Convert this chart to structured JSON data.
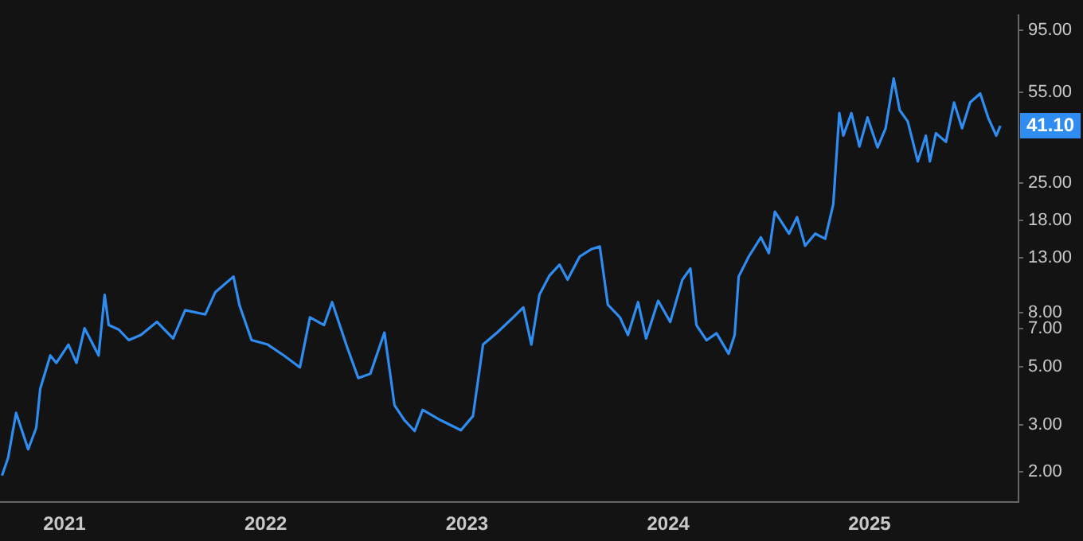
{
  "chart_data": {
    "type": "line",
    "log": "y",
    "color": "#2f8cf0",
    "x": [
      2020.69,
      2020.72,
      2020.76,
      2020.82,
      2020.86,
      2020.88,
      2020.93,
      2020.96,
      2021.02,
      2021.06,
      2021.1,
      2021.17,
      2021.2,
      2021.22,
      2021.27,
      2021.32,
      2021.38,
      2021.46,
      2021.54,
      2021.6,
      2021.7,
      2021.75,
      2021.84,
      2021.87,
      2021.93,
      2022.01,
      2022.09,
      2022.17,
      2022.22,
      2022.29,
      2022.33,
      2022.4,
      2022.46,
      2022.52,
      2022.59,
      2022.64,
      2022.69,
      2022.74,
      2022.78,
      2022.87,
      2022.97,
      2023.03,
      2023.08,
      2023.15,
      2023.23,
      2023.28,
      2023.32,
      2023.36,
      2023.41,
      2023.46,
      2023.5,
      2023.56,
      2023.62,
      2023.66,
      2023.7,
      2023.76,
      2023.8,
      2023.85,
      2023.89,
      2023.95,
      2024.01,
      2024.07,
      2024.11,
      2024.14,
      2024.19,
      2024.24,
      2024.3,
      2024.33,
      2024.35,
      2024.4,
      2024.46,
      2024.5,
      2024.53,
      2024.6,
      2024.64,
      2024.68,
      2024.73,
      2024.78,
      2024.82,
      2024.85,
      2024.87,
      2024.91,
      2024.95,
      2024.99,
      2025.04,
      2025.08,
      2025.12,
      2025.15,
      2025.19,
      2025.24,
      2025.28,
      2025.3,
      2025.33,
      2025.38,
      2025.42,
      2025.46,
      2025.5,
      2025.55,
      2025.59,
      2025.63,
      2025.65
    ],
    "values": [
      1.93,
      2.25,
      3.34,
      2.43,
      2.93,
      4.13,
      5.52,
      5.17,
      6.07,
      5.17,
      7.0,
      5.52,
      9.38,
      7.2,
      6.92,
      6.31,
      6.6,
      7.4,
      6.4,
      8.2,
      7.9,
      9.6,
      11.0,
      8.55,
      6.31,
      6.07,
      5.52,
      4.97,
      7.7,
      7.2,
      8.8,
      6.07,
      4.53,
      4.7,
      6.74,
      3.57,
      3.13,
      2.85,
      3.43,
      3.13,
      2.87,
      3.25,
      6.07,
      6.74,
      7.7,
      8.4,
      6.07,
      9.38,
      11.1,
      12.2,
      10.7,
      13.1,
      14.0,
      14.3,
      8.6,
      7.7,
      6.6,
      8.8,
      6.4,
      8.9,
      7.4,
      10.7,
      11.8,
      7.2,
      6.3,
      6.7,
      5.6,
      6.6,
      11.0,
      13.1,
      15.5,
      13.5,
      19.4,
      16.0,
      18.5,
      14.4,
      16.0,
      15.3,
      20.7,
      45.9,
      37.7,
      45.9,
      34.3,
      44.2,
      34.0,
      40.2,
      62.2,
      47.1,
      42.7,
      30.1,
      37.7,
      30.1,
      38.5,
      35.7,
      50.4,
      40.2,
      50.4,
      54.5,
      44.0,
      37.7,
      41.1
    ],
    "xlim": [
      2020.68,
      2025.74
    ],
    "xticks": [
      2021,
      2022,
      2023,
      2024,
      2025
    ],
    "ylim": [
      1.53,
      108
    ],
    "yticks": [
      {
        "value": 2,
        "label": "2.00"
      },
      {
        "value": 3,
        "label": "3.00"
      },
      {
        "value": 5,
        "label": "5.00"
      },
      {
        "value": 7,
        "label": "7.00"
      },
      {
        "value": 8,
        "label": "8.00"
      },
      {
        "value": 13,
        "label": "13.00"
      },
      {
        "value": 18,
        "label": "18.00"
      },
      {
        "value": 25,
        "label": "25.00"
      },
      {
        "value": 55,
        "label": "55.00"
      },
      {
        "value": 95,
        "label": "95.00"
      }
    ],
    "annotations": [
      {
        "text": "41.10",
        "y": 41.1
      }
    ]
  }
}
